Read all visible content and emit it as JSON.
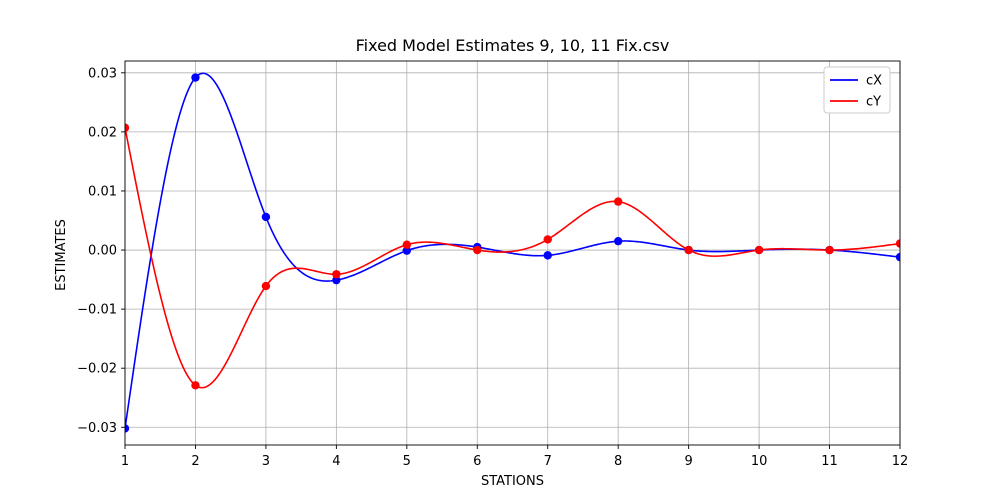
{
  "chart_data": {
    "type": "line",
    "title": "Fixed Model Estimates 9, 10, 11 Fix.csv",
    "xlabel": "STATIONS",
    "ylabel": "ESTIMATES",
    "xlim": [
      1,
      12
    ],
    "ylim": [
      -0.033,
      0.032
    ],
    "x_ticks": [
      1,
      2,
      3,
      4,
      5,
      6,
      7,
      8,
      9,
      10,
      11,
      12
    ],
    "y_ticks": [
      -0.03,
      -0.02,
      -0.01,
      0.0,
      0.01,
      0.02,
      0.03
    ],
    "y_tick_labels": [
      "−0.03",
      "−0.02",
      "−0.01",
      "0.00",
      "0.01",
      "0.02",
      "0.03"
    ],
    "x": [
      1,
      2,
      3,
      4,
      5,
      6,
      7,
      8,
      9,
      10,
      11,
      12
    ],
    "grid": true,
    "legend_position": "top-right",
    "series": [
      {
        "name": "cX",
        "color": "#0000ff",
        "values": [
          -0.0302,
          0.0292,
          0.0056,
          -0.0051,
          -0.0001,
          0.0005,
          -0.0009,
          0.0015,
          0.0,
          0.0,
          0.0,
          -0.0012
        ]
      },
      {
        "name": "cY",
        "color": "#ff0000",
        "values": [
          0.0207,
          -0.0229,
          -0.0061,
          -0.0041,
          0.0009,
          0.0,
          0.0018,
          0.0082,
          0.0,
          0.0,
          0.0,
          0.0011
        ]
      }
    ]
  }
}
